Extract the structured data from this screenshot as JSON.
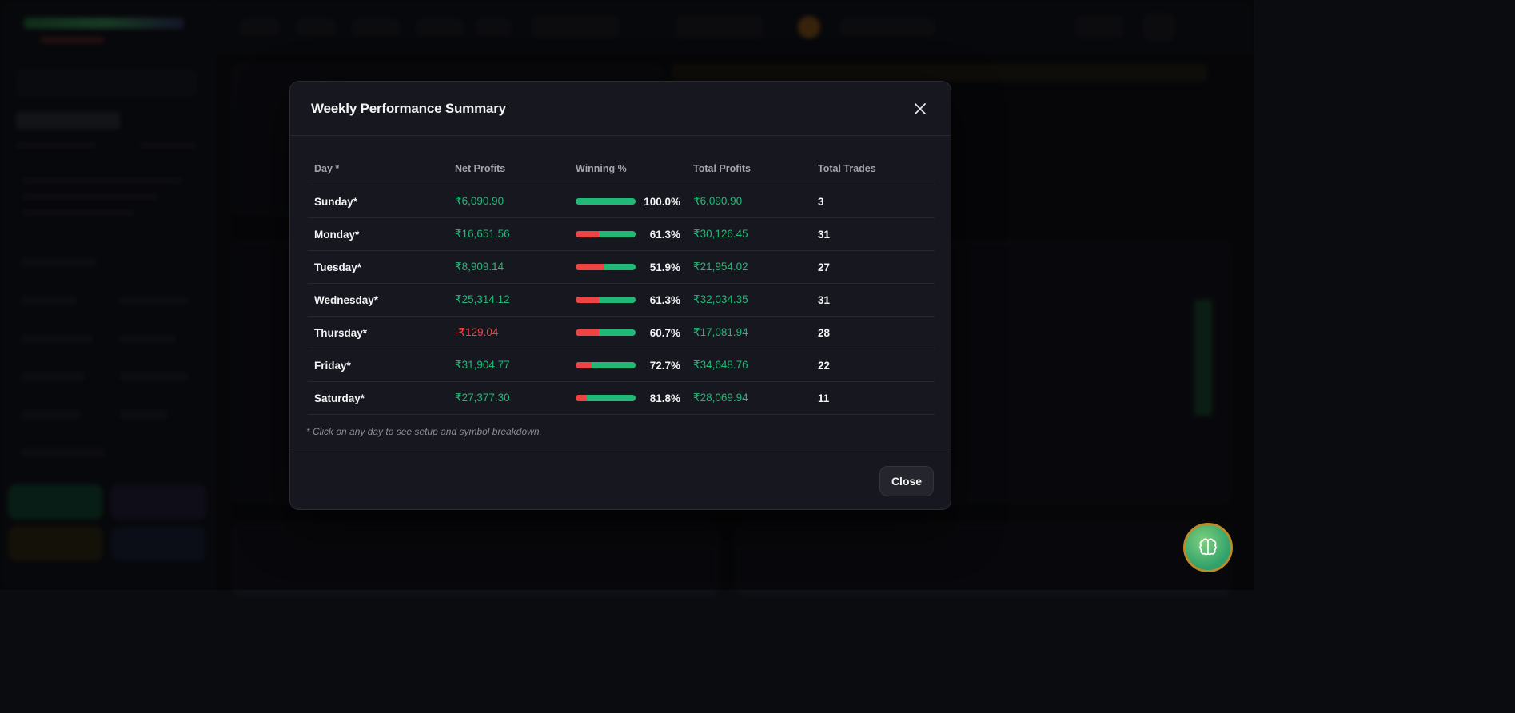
{
  "modal": {
    "title": "Weekly Performance Summary",
    "columns": [
      "Day *",
      "Net Profits",
      "Winning %",
      "Total Profits",
      "Total Trades"
    ],
    "rows": [
      {
        "day": "Sunday*",
        "net_profit": "₹6,090.90",
        "net_positive": true,
        "winning_pct": "100.0%",
        "win_fraction": 1.0,
        "total_profits": "₹6,090.90",
        "total_trades": "3"
      },
      {
        "day": "Monday*",
        "net_profit": "₹16,651.56",
        "net_positive": true,
        "winning_pct": "61.3%",
        "win_fraction": 0.613,
        "total_profits": "₹30,126.45",
        "total_trades": "31"
      },
      {
        "day": "Tuesday*",
        "net_profit": "₹8,909.14",
        "net_positive": true,
        "winning_pct": "51.9%",
        "win_fraction": 0.519,
        "total_profits": "₹21,954.02",
        "total_trades": "27"
      },
      {
        "day": "Wednesday*",
        "net_profit": "₹25,314.12",
        "net_positive": true,
        "winning_pct": "61.3%",
        "win_fraction": 0.613,
        "total_profits": "₹32,034.35",
        "total_trades": "31"
      },
      {
        "day": "Thursday*",
        "net_profit": "-₹129.04",
        "net_positive": false,
        "winning_pct": "60.7%",
        "win_fraction": 0.607,
        "total_profits": "₹17,081.94",
        "total_trades": "28"
      },
      {
        "day": "Friday*",
        "net_profit": "₹31,904.77",
        "net_positive": true,
        "winning_pct": "72.7%",
        "win_fraction": 0.727,
        "total_profits": "₹34,648.76",
        "total_trades": "22"
      },
      {
        "day": "Saturday*",
        "net_profit": "₹27,377.30",
        "net_positive": true,
        "winning_pct": "81.8%",
        "win_fraction": 0.818,
        "total_profits": "₹28,069.94",
        "total_trades": "11"
      }
    ],
    "note": "* Click on any day to see setup and symbol breakdown.",
    "close_label": "Close"
  },
  "colors": {
    "positive": "#22b878",
    "negative": "#ef4444"
  },
  "icons": {
    "close": "close-icon",
    "assistant": "brain-icon"
  }
}
